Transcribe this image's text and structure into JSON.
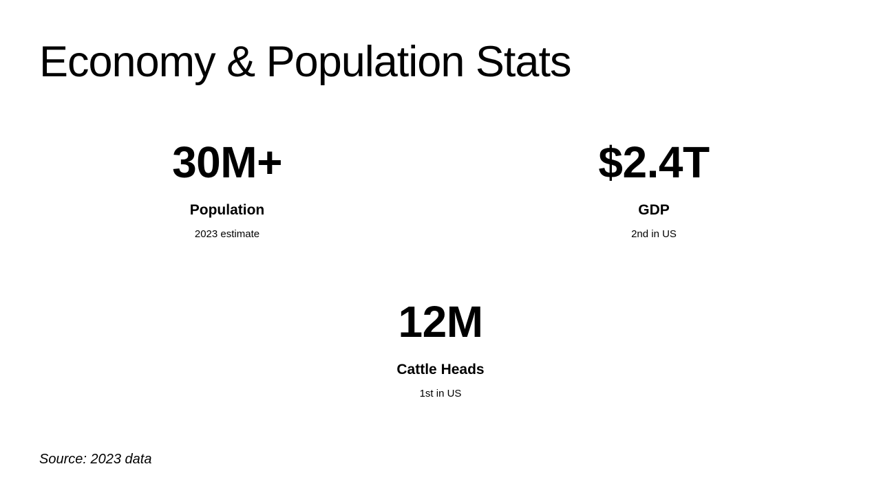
{
  "slide": {
    "title": "Economy & Population Stats",
    "stats": [
      {
        "value": "30M+",
        "label": "Population",
        "note": "2023 estimate"
      },
      {
        "value": "$2.4T",
        "label": "GDP",
        "note": "2nd in US"
      },
      {
        "value": "12M",
        "label": "Cattle Heads",
        "note": "1st in US"
      }
    ],
    "source": "Source: 2023 data"
  }
}
